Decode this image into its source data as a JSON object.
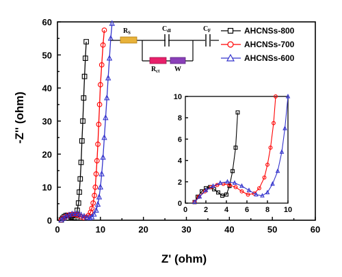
{
  "chart_data": {
    "type": "scatter",
    "xlabel": "Z' (ohm)",
    "ylabel": "-Z'' (ohm)",
    "xlim": [
      0,
      60
    ],
    "ylim": [
      0,
      60
    ],
    "xticks": [
      "0",
      "10",
      "20",
      "30",
      "40",
      "50",
      "60"
    ],
    "yticks": [
      "0",
      "10",
      "20",
      "30",
      "40",
      "50",
      "60"
    ],
    "legend_position": "top-right",
    "series": [
      {
        "name": "AHCNSs-800",
        "color": "#000000",
        "marker": "square",
        "x": [
          0.9,
          1.2,
          1.6,
          2.0,
          2.4,
          2.8,
          3.2,
          3.6,
          4.0,
          4.3,
          4.6,
          4.9,
          5.1,
          5.3,
          5.5,
          5.7,
          5.9,
          6.1,
          6.3,
          6.5,
          6.7
        ],
        "y": [
          0.1,
          0.6,
          1.1,
          1.4,
          1.5,
          1.3,
          1.0,
          0.7,
          0.8,
          1.6,
          3.0,
          5.2,
          8.5,
          12.5,
          17.5,
          24.0,
          30.0,
          37.0,
          43.5,
          49.0,
          54.0
        ]
      },
      {
        "name": "AHCNSs-700",
        "color": "#ff0000",
        "marker": "circle",
        "x": [
          0.9,
          1.3,
          1.9,
          2.5,
          3.1,
          3.7,
          4.3,
          4.9,
          5.5,
          6.1,
          6.7,
          7.2,
          7.7,
          8.0,
          8.3,
          8.6,
          8.8,
          9.0,
          9.2,
          9.4,
          9.6,
          9.8,
          10.0,
          10.3,
          10.6,
          10.9
        ],
        "y": [
          0.1,
          0.6,
          1.1,
          1.5,
          1.7,
          1.8,
          1.7,
          1.5,
          1.1,
          0.8,
          0.9,
          1.4,
          2.4,
          3.6,
          5.2,
          7.5,
          10.0,
          14.0,
          18.0,
          23.0,
          29.0,
          35.0,
          41.0,
          47.0,
          53.0,
          57.5
        ]
      },
      {
        "name": "AHCNSs-600",
        "color": "#3333cc",
        "marker": "triangle",
        "x": [
          0.9,
          1.4,
          2.0,
          2.7,
          3.4,
          4.1,
          4.8,
          5.5,
          6.2,
          6.9,
          7.5,
          8.0,
          8.5,
          9.0,
          9.4,
          9.7,
          10.0,
          10.3,
          10.6,
          10.9,
          11.2,
          11.5,
          11.8,
          12.1,
          12.4,
          12.7
        ],
        "y": [
          0.1,
          0.6,
          1.2,
          1.6,
          1.9,
          2.0,
          1.9,
          1.6,
          1.2,
          0.8,
          0.7,
          1.0,
          1.8,
          3.0,
          4.8,
          7.0,
          10.0,
          14.0,
          19.0,
          25.0,
          31.0,
          37.0,
          43.0,
          49.0,
          55.0,
          59.5
        ]
      }
    ],
    "inset": {
      "xlim": [
        0,
        10
      ],
      "ylim": [
        0,
        10
      ],
      "xticks": [
        "0",
        "2",
        "4",
        "6",
        "8",
        "10"
      ],
      "yticks": [
        "0",
        "2",
        "4",
        "6",
        "8",
        "10"
      ]
    },
    "circuit": {
      "labels": [
        "R",
        "C",
        "C",
        "R",
        "W"
      ],
      "subscripts": [
        "S",
        "dl",
        "F",
        "ct",
        ""
      ]
    }
  }
}
